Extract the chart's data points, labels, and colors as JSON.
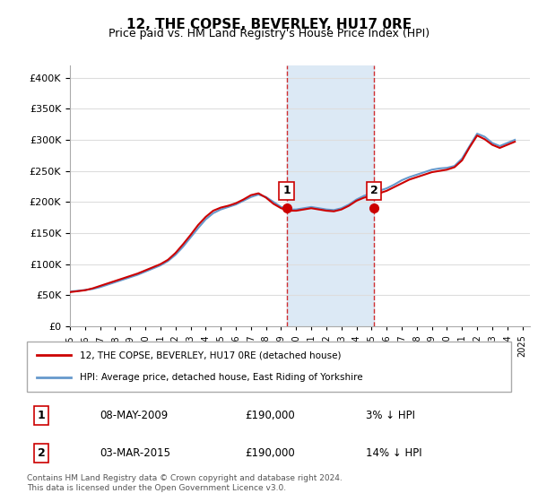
{
  "title": "12, THE COPSE, BEVERLEY, HU17 0RE",
  "subtitle": "Price paid vs. HM Land Registry's House Price Index (HPI)",
  "legend_line1": "12, THE COPSE, BEVERLEY, HU17 0RE (detached house)",
  "legend_line2": "HPI: Average price, detached house, East Riding of Yorkshire",
  "transaction1_label": "1",
  "transaction1_date": "08-MAY-2009",
  "transaction1_price": "£190,000",
  "transaction1_hpi": "3% ↓ HPI",
  "transaction2_label": "2",
  "transaction2_date": "03-MAR-2015",
  "transaction2_price": "£190,000",
  "transaction2_hpi": "14% ↓ HPI",
  "footer": "Contains HM Land Registry data © Crown copyright and database right 2024.\nThis data is licensed under the Open Government Licence v3.0.",
  "sale1_year": 2009.36,
  "sale2_year": 2015.17,
  "sale1_price": 190000,
  "sale2_price": 190000,
  "line_color_property": "#cc0000",
  "line_color_hpi": "#6699cc",
  "shade_color": "#dce9f5",
  "marker_color_property": "#cc0000",
  "ylim_min": 0,
  "ylim_max": 420000,
  "xlim_min": 1995,
  "xlim_max": 2025.5,
  "background_color": "#ffffff",
  "grid_color": "#dddddd",
  "hpi_years": [
    1995,
    1995.5,
    1996,
    1996.5,
    1997,
    1997.5,
    1998,
    1998.5,
    1999,
    1999.5,
    2000,
    2000.5,
    2001,
    2001.5,
    2002,
    2002.5,
    2003,
    2003.5,
    2004,
    2004.5,
    2005,
    2005.5,
    2006,
    2006.5,
    2007,
    2007.5,
    2008,
    2008.5,
    2009,
    2009.5,
    2010,
    2010.5,
    2011,
    2011.5,
    2012,
    2012.5,
    2013,
    2013.5,
    2014,
    2014.5,
    2015,
    2015.5,
    2016,
    2016.5,
    2017,
    2017.5,
    2018,
    2018.5,
    2019,
    2019.5,
    2020,
    2020.5,
    2021,
    2021.5,
    2022,
    2022.5,
    2023,
    2023.5,
    2024,
    2024.5
  ],
  "hpi_values": [
    56000,
    57000,
    58500,
    60000,
    63000,
    67000,
    71000,
    75000,
    79000,
    83000,
    88000,
    93000,
    98000,
    105000,
    115000,
    128000,
    143000,
    158000,
    172000,
    182000,
    188000,
    192000,
    196000,
    202000,
    208000,
    212000,
    208000,
    200000,
    192000,
    188000,
    188000,
    190000,
    192000,
    190000,
    188000,
    187000,
    190000,
    196000,
    204000,
    210000,
    214000,
    218000,
    222000,
    228000,
    235000,
    240000,
    244000,
    248000,
    252000,
    254000,
    255000,
    258000,
    270000,
    290000,
    310000,
    305000,
    295000,
    290000,
    295000,
    300000
  ],
  "prop_years": [
    1995,
    1995.5,
    1996,
    1996.5,
    1997,
    1997.5,
    1998,
    1998.5,
    1999,
    1999.5,
    2000,
    2000.5,
    2001,
    2001.5,
    2002,
    2002.5,
    2003,
    2003.5,
    2004,
    2004.5,
    2005,
    2005.5,
    2006,
    2006.5,
    2007,
    2007.5,
    2008,
    2008.5,
    2009,
    2009.5,
    2010,
    2010.5,
    2011,
    2011.5,
    2012,
    2012.5,
    2013,
    2013.5,
    2014,
    2014.5,
    2015,
    2015.5,
    2016,
    2016.5,
    2017,
    2017.5,
    2018,
    2018.5,
    2019,
    2019.5,
    2020,
    2020.5,
    2021,
    2021.5,
    2022,
    2022.5,
    2023,
    2023.5,
    2024,
    2024.5
  ],
  "prop_values": [
    55000,
    56500,
    58000,
    61000,
    65000,
    69000,
    73000,
    77000,
    81000,
    85000,
    90000,
    95000,
    100000,
    107000,
    118000,
    132000,
    147000,
    163000,
    176000,
    186000,
    191000,
    194000,
    198000,
    204000,
    211000,
    214000,
    207000,
    197000,
    190000,
    186000,
    186000,
    188000,
    190000,
    188000,
    186000,
    185000,
    188000,
    194000,
    202000,
    207000,
    210000,
    214000,
    218000,
    224000,
    230000,
    236000,
    240000,
    244000,
    248000,
    250000,
    252000,
    256000,
    267000,
    288000,
    307000,
    301000,
    292000,
    287000,
    292000,
    297000
  ]
}
